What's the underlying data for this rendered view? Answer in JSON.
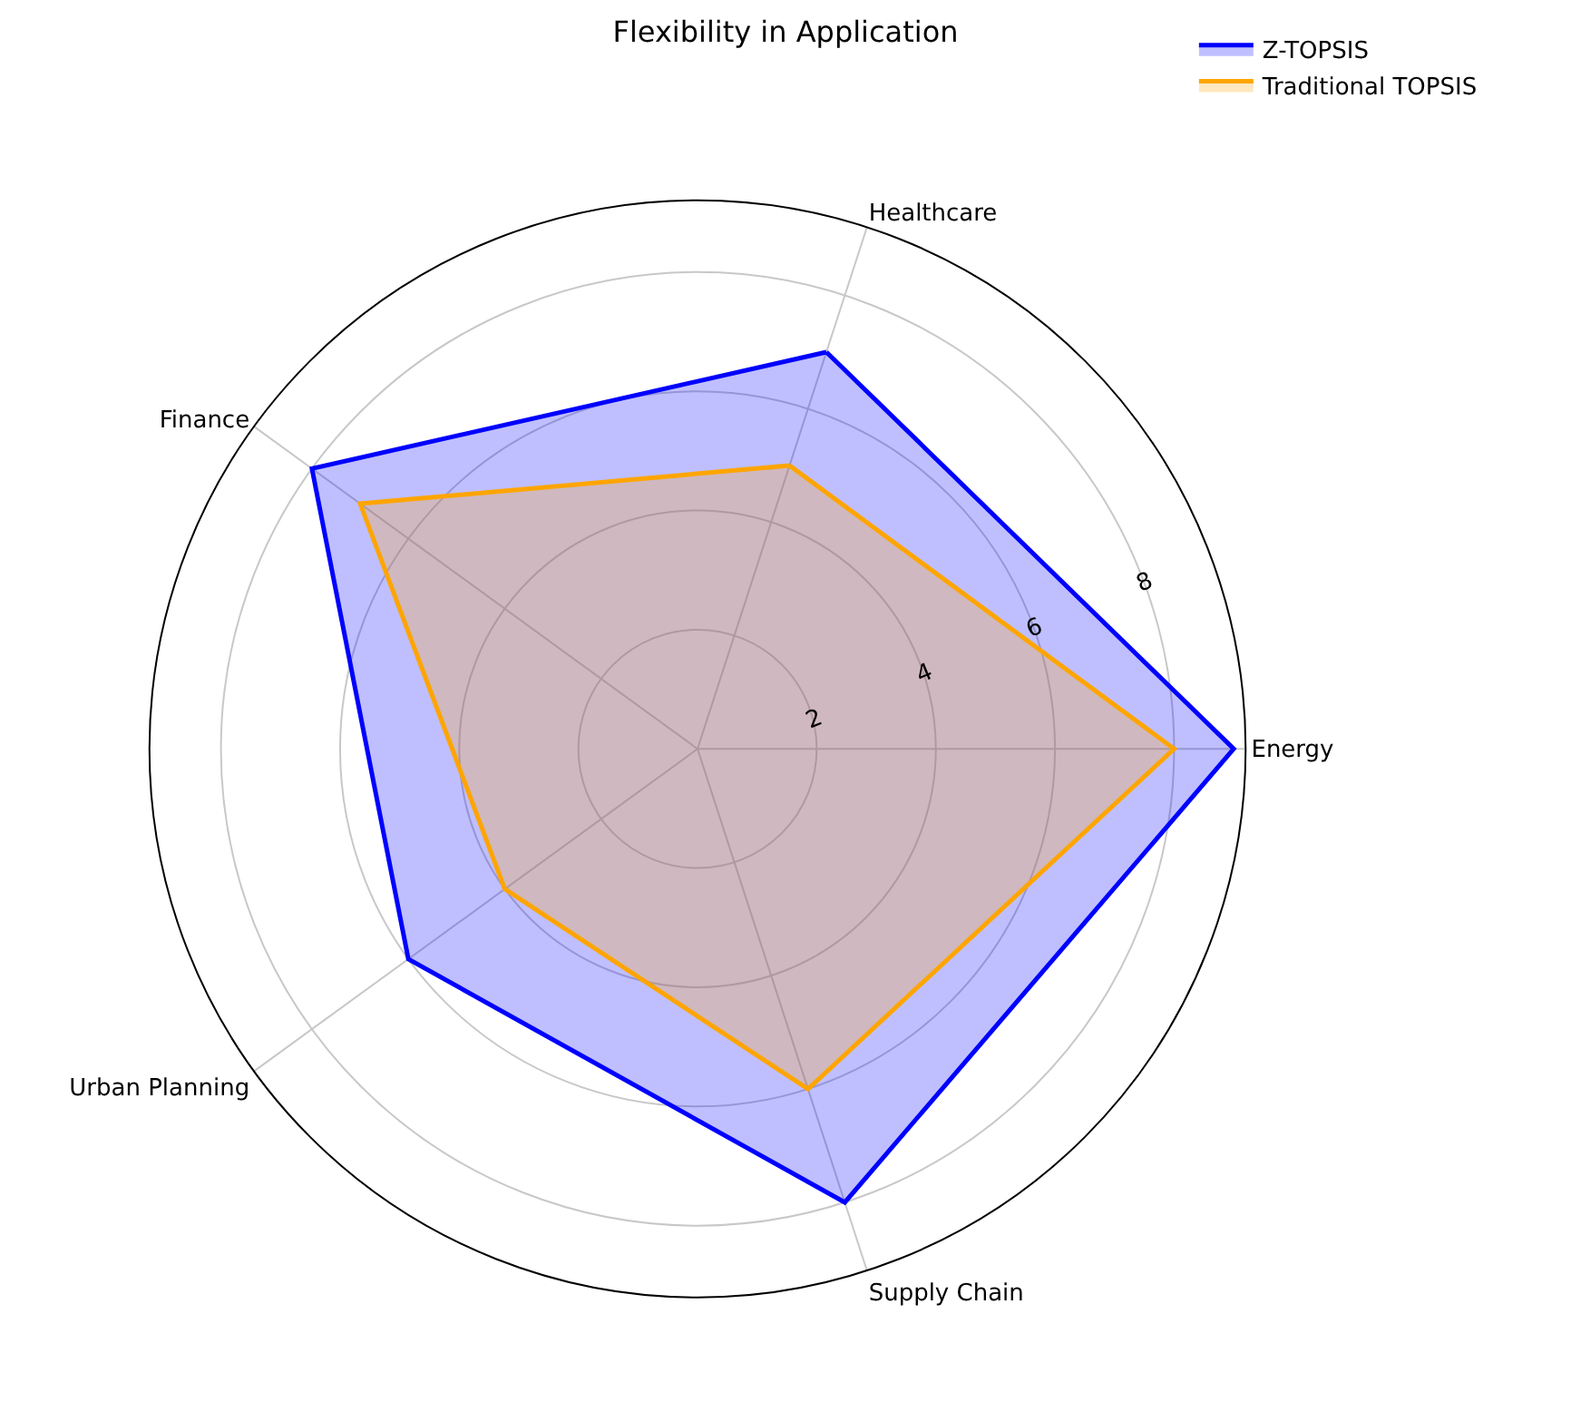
{
  "chart_data": {
    "type": "radar",
    "title": "Flexibility in Application",
    "categories": [
      "Healthcare",
      "Energy",
      "Supply Chain",
      "Urban Planning",
      "Finance"
    ],
    "series": [
      {
        "name": "Z-TOPSIS",
        "color": "#0000ff",
        "values": [
          7,
          9,
          8,
          6,
          8
        ]
      },
      {
        "name": "Traditional TOPSIS",
        "color": "#ffa500",
        "values": [
          5,
          8,
          6,
          4,
          7
        ]
      }
    ],
    "ylim": [
      0,
      9.2
    ],
    "yticks": [
      2,
      4,
      6,
      8
    ],
    "grid": true,
    "legend": "top right",
    "marker": "none",
    "line_style": "solid"
  }
}
